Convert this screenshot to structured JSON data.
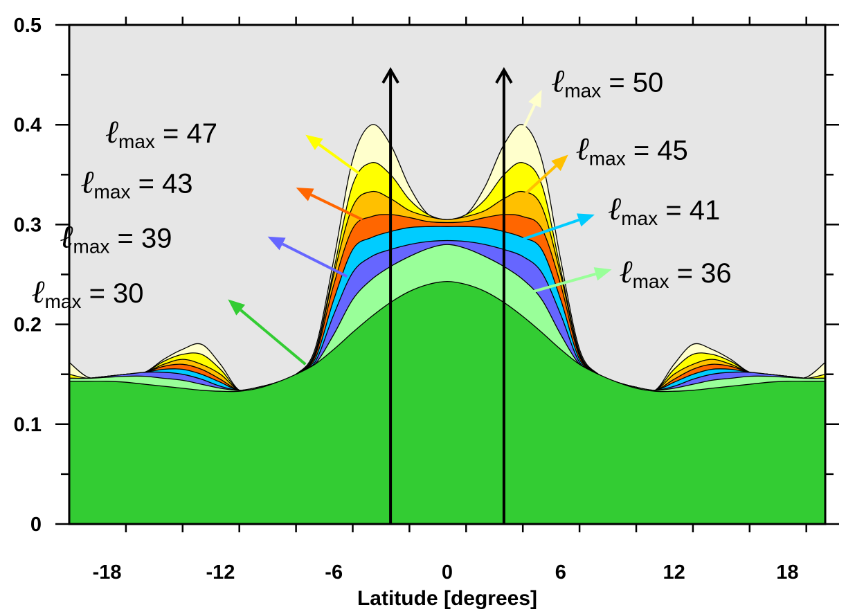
{
  "chart_data": {
    "type": "area",
    "xlabel": "Latitude [degrees]",
    "ylabel": "",
    "xlim": [
      -20,
      20
    ],
    "ylim": [
      0,
      0.5
    ],
    "x_ticks": [
      -18,
      -12,
      -6,
      0,
      6,
      12,
      18
    ],
    "y_ticks": [
      0,
      0.1,
      0.2,
      0.3,
      0.4,
      0.5
    ],
    "y_tick_labels": [
      "0",
      "0.1",
      "0.2",
      "0.3",
      "0.4",
      "0.5"
    ],
    "background_color": "#e6e6e6",
    "x": [
      -20,
      -19,
      -18,
      -17,
      -16,
      -15,
      -14,
      -13,
      -12,
      -11,
      -10,
      -9,
      -8,
      -7,
      -6,
      -5,
      -4,
      -3,
      -2,
      -1,
      0,
      1,
      2,
      3,
      4,
      5,
      6,
      7,
      8,
      9,
      10,
      11,
      12,
      13,
      14,
      15,
      16,
      17,
      18,
      19,
      20
    ],
    "series": [
      {
        "name": "ℓmax = 50",
        "color": "#ffffcc",
        "values": [
          0.162,
          0.147,
          0.148,
          0.15,
          0.152,
          0.165,
          0.175,
          0.18,
          0.16,
          0.134,
          0.137,
          0.142,
          0.15,
          0.175,
          0.265,
          0.365,
          0.4,
          0.38,
          0.338,
          0.31,
          0.305,
          0.31,
          0.338,
          0.38,
          0.4,
          0.365,
          0.265,
          0.175,
          0.15,
          0.142,
          0.137,
          0.134,
          0.16,
          0.18,
          0.175,
          0.165,
          0.152,
          0.15,
          0.148,
          0.147,
          0.162
        ]
      },
      {
        "name": "ℓmax = 47",
        "color": "#ffff00",
        "values": [
          0.15,
          0.146,
          0.148,
          0.15,
          0.152,
          0.163,
          0.17,
          0.17,
          0.155,
          0.134,
          0.137,
          0.142,
          0.15,
          0.172,
          0.255,
          0.34,
          0.362,
          0.35,
          0.325,
          0.31,
          0.305,
          0.31,
          0.325,
          0.35,
          0.362,
          0.34,
          0.255,
          0.172,
          0.15,
          0.142,
          0.137,
          0.134,
          0.155,
          0.17,
          0.17,
          0.163,
          0.152,
          0.15,
          0.148,
          0.146,
          0.15
        ]
      },
      {
        "name": "ℓmax = 45",
        "color": "#ffc000",
        "values": [
          0.146,
          0.146,
          0.148,
          0.15,
          0.152,
          0.16,
          0.165,
          0.16,
          0.15,
          0.134,
          0.137,
          0.142,
          0.15,
          0.17,
          0.25,
          0.318,
          0.333,
          0.326,
          0.314,
          0.308,
          0.305,
          0.308,
          0.314,
          0.326,
          0.333,
          0.318,
          0.25,
          0.17,
          0.15,
          0.142,
          0.137,
          0.134,
          0.15,
          0.16,
          0.165,
          0.16,
          0.152,
          0.15,
          0.148,
          0.146,
          0.146
        ]
      },
      {
        "name": "ℓmax = 43",
        "color": "#ff6600",
        "values": [
          0.146,
          0.146,
          0.148,
          0.15,
          0.152,
          0.158,
          0.16,
          0.155,
          0.145,
          0.134,
          0.137,
          0.142,
          0.15,
          0.168,
          0.24,
          0.296,
          0.308,
          0.31,
          0.307,
          0.303,
          0.302,
          0.303,
          0.307,
          0.31,
          0.308,
          0.296,
          0.24,
          0.168,
          0.15,
          0.142,
          0.137,
          0.134,
          0.145,
          0.155,
          0.16,
          0.158,
          0.152,
          0.15,
          0.148,
          0.146,
          0.146
        ]
      },
      {
        "name": "ℓmax = 41",
        "color": "#00ccff",
        "values": [
          0.146,
          0.146,
          0.148,
          0.15,
          0.152,
          0.155,
          0.155,
          0.15,
          0.142,
          0.134,
          0.137,
          0.142,
          0.15,
          0.165,
          0.225,
          0.275,
          0.287,
          0.293,
          0.297,
          0.298,
          0.298,
          0.298,
          0.297,
          0.293,
          0.287,
          0.275,
          0.225,
          0.165,
          0.15,
          0.142,
          0.137,
          0.134,
          0.142,
          0.15,
          0.155,
          0.155,
          0.152,
          0.15,
          0.148,
          0.146,
          0.146
        ]
      },
      {
        "name": "ℓmax = 39",
        "color": "#6666ff",
        "values": [
          0.146,
          0.146,
          0.148,
          0.15,
          0.152,
          0.152,
          0.15,
          0.145,
          0.138,
          0.134,
          0.137,
          0.142,
          0.15,
          0.162,
          0.21,
          0.252,
          0.268,
          0.275,
          0.28,
          0.283,
          0.284,
          0.283,
          0.28,
          0.275,
          0.268,
          0.252,
          0.21,
          0.162,
          0.15,
          0.142,
          0.137,
          0.134,
          0.138,
          0.145,
          0.15,
          0.152,
          0.152,
          0.15,
          0.148,
          0.146,
          0.146
        ]
      },
      {
        "name": "ℓmax = 36",
        "color": "#99ff99",
        "values": [
          0.146,
          0.146,
          0.147,
          0.148,
          0.148,
          0.146,
          0.144,
          0.14,
          0.136,
          0.134,
          0.137,
          0.142,
          0.148,
          0.16,
          0.19,
          0.225,
          0.245,
          0.258,
          0.268,
          0.276,
          0.28,
          0.276,
          0.268,
          0.258,
          0.245,
          0.225,
          0.19,
          0.16,
          0.148,
          0.142,
          0.137,
          0.134,
          0.136,
          0.14,
          0.144,
          0.146,
          0.148,
          0.148,
          0.147,
          0.146,
          0.146
        ]
      },
      {
        "name": "ℓmax = 30",
        "color": "#33cc33",
        "values": [
          0.143,
          0.143,
          0.143,
          0.142,
          0.14,
          0.138,
          0.136,
          0.134,
          0.133,
          0.133,
          0.136,
          0.142,
          0.15,
          0.16,
          0.175,
          0.192,
          0.208,
          0.222,
          0.233,
          0.24,
          0.243,
          0.24,
          0.233,
          0.222,
          0.208,
          0.192,
          0.175,
          0.16,
          0.15,
          0.142,
          0.136,
          0.133,
          0.133,
          0.134,
          0.136,
          0.138,
          0.14,
          0.142,
          0.143,
          0.143,
          0.143
        ]
      }
    ],
    "vertical_arrows": [
      {
        "x": -3,
        "y_from": 0,
        "y_to": 0.455
      },
      {
        "x": 3,
        "y_from": 0,
        "y_to": 0.455
      }
    ],
    "annotations": [
      {
        "ell": "ℓ",
        "sub": "max",
        "rest": " = 47",
        "color": "#ffff00",
        "tx": -18.1,
        "ty": 0.382,
        "ax1": -4.2,
        "ay1": 0.345,
        "ax2": -7.5,
        "ay2": 0.39
      },
      {
        "ell": "ℓ",
        "sub": "max",
        "rest": " = 43",
        "color": "#ff6600",
        "tx": -19.4,
        "ty": 0.332,
        "ax1": -4.5,
        "ay1": 0.305,
        "ax2": -8.0,
        "ay2": 0.337
      },
      {
        "ell": "ℓ",
        "sub": "max",
        "rest": " = 39",
        "color": "#6666ff",
        "tx": -20.5,
        "ty": 0.277,
        "ax1": -5.3,
        "ay1": 0.248,
        "ax2": -9.5,
        "ay2": 0.288
      },
      {
        "ell": "ℓ",
        "sub": "max",
        "rest": " = 30",
        "color": "#33cc33",
        "tx": -22.0,
        "ty": 0.222,
        "ax1": -7.5,
        "ay1": 0.16,
        "ax2": -11.6,
        "ay2": 0.225
      },
      {
        "ell": "ℓ",
        "sub": "max",
        "rest": " = 50",
        "color": "#ffffcc",
        "tx": 5.5,
        "ty": 0.433,
        "ax1": 4.0,
        "ay1": 0.395,
        "ax2": 5.0,
        "ay2": 0.435
      },
      {
        "ell": "ℓ",
        "sub": "max",
        "rest": " = 45",
        "color": "#ffc000",
        "tx": 6.8,
        "ty": 0.365,
        "ax1": 3.8,
        "ay1": 0.325,
        "ax2": 6.4,
        "ay2": 0.37
      },
      {
        "ell": "ℓ",
        "sub": "max",
        "rest": " = 41",
        "color": "#00ccff",
        "tx": 8.5,
        "ty": 0.305,
        "ax1": 3.8,
        "ay1": 0.284,
        "ax2": 7.8,
        "ay2": 0.31
      },
      {
        "ell": "ℓ",
        "sub": "max",
        "rest": " = 36",
        "color": "#99ff99",
        "tx": 9.1,
        "ty": 0.242,
        "ax1": 4.0,
        "ay1": 0.23,
        "ax2": 8.7,
        "ay2": 0.255
      }
    ]
  }
}
